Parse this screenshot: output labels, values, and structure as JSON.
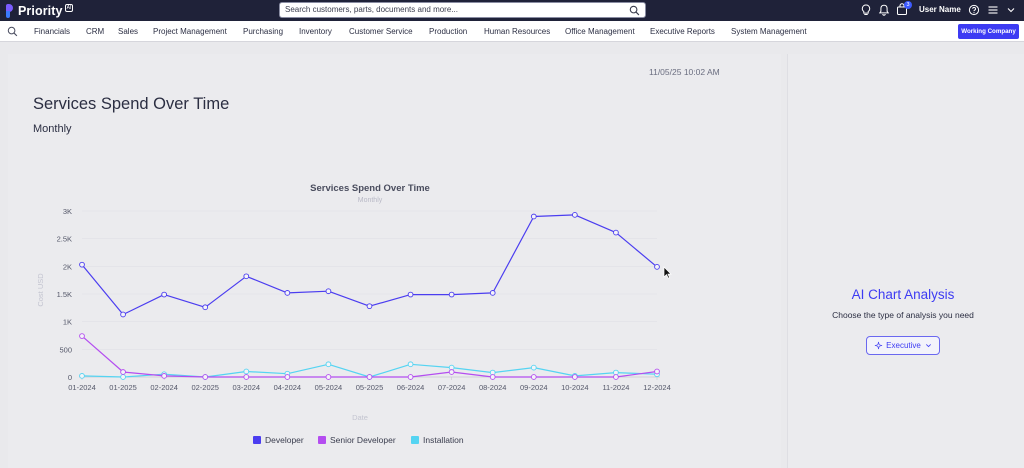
{
  "app": {
    "logo_text": "Priority",
    "logo_badge": "AI",
    "search_placeholder": "Search customers, parts, documents and more...",
    "cart_count": "3",
    "user_name": "User Name"
  },
  "icons": {
    "search": "search-icon",
    "bulb": "lightbulb-icon",
    "bell": "bell-icon",
    "cart": "cart-icon",
    "help": "help-icon",
    "menu": "hamburger-menu-icon",
    "sparkle": "sparkle-icon",
    "chevron": "chevron-down-icon"
  },
  "menu": {
    "items": [
      "Financials",
      "CRM",
      "Sales",
      "Project Management",
      "Purchasing",
      "Inventory",
      "Customer Service",
      "Production",
      "Human Resources",
      "Office Management",
      "Executive Reports",
      "System Management"
    ],
    "working_company": "Working Company"
  },
  "report": {
    "timestamp": "11/05/25 10:02 AM",
    "title": "Services Spend Over Time",
    "subtitle": "Monthly"
  },
  "ai_panel": {
    "title": "AI Chart Analysis",
    "subtitle": "Choose the type of analysis you need",
    "button_label": "Executive"
  },
  "colors": {
    "accent": "#3d3bf3",
    "topbar": "#1f2239",
    "developer": "#4b3df0",
    "senior_developer": "#b44df0",
    "installation": "#55d4f2"
  },
  "chart_data": {
    "type": "line",
    "title": "Services Spend Over Time",
    "subtitle": "Monthly",
    "xlabel": "Date",
    "ylabel": "Cost USD",
    "ylim": [
      0,
      3000
    ],
    "yticks": [
      0,
      500,
      1000,
      1500,
      2000,
      2500,
      3000
    ],
    "ytick_labels": [
      "0",
      "500",
      "1K",
      "1.5K",
      "2K",
      "2.5K",
      "3K"
    ],
    "grid": true,
    "legend_position": "bottom",
    "categories": [
      "01-2024",
      "01-2025",
      "02-2024",
      "02-2025",
      "03-2024",
      "04-2024",
      "05-2024",
      "05-2025",
      "06-2024",
      "07-2024",
      "08-2024",
      "09-2024",
      "10-2024",
      "11-2024",
      "12-2024"
    ],
    "series": [
      {
        "name": "Developer",
        "color": "#4b3df0",
        "values": [
          2030,
          1130,
          1490,
          1260,
          1820,
          1520,
          1550,
          1280,
          1490,
          1490,
          1520,
          2900,
          2930,
          2610,
          1990
        ]
      },
      {
        "name": "Senior Developer",
        "color": "#b44df0",
        "values": [
          740,
          90,
          20,
          0,
          0,
          0,
          0,
          0,
          0,
          90,
          0,
          0,
          0,
          0,
          100
        ]
      },
      {
        "name": "Installation",
        "color": "#55d4f2",
        "values": [
          20,
          0,
          50,
          0,
          100,
          60,
          230,
          0,
          230,
          170,
          80,
          170,
          20,
          80,
          50
        ]
      }
    ]
  }
}
